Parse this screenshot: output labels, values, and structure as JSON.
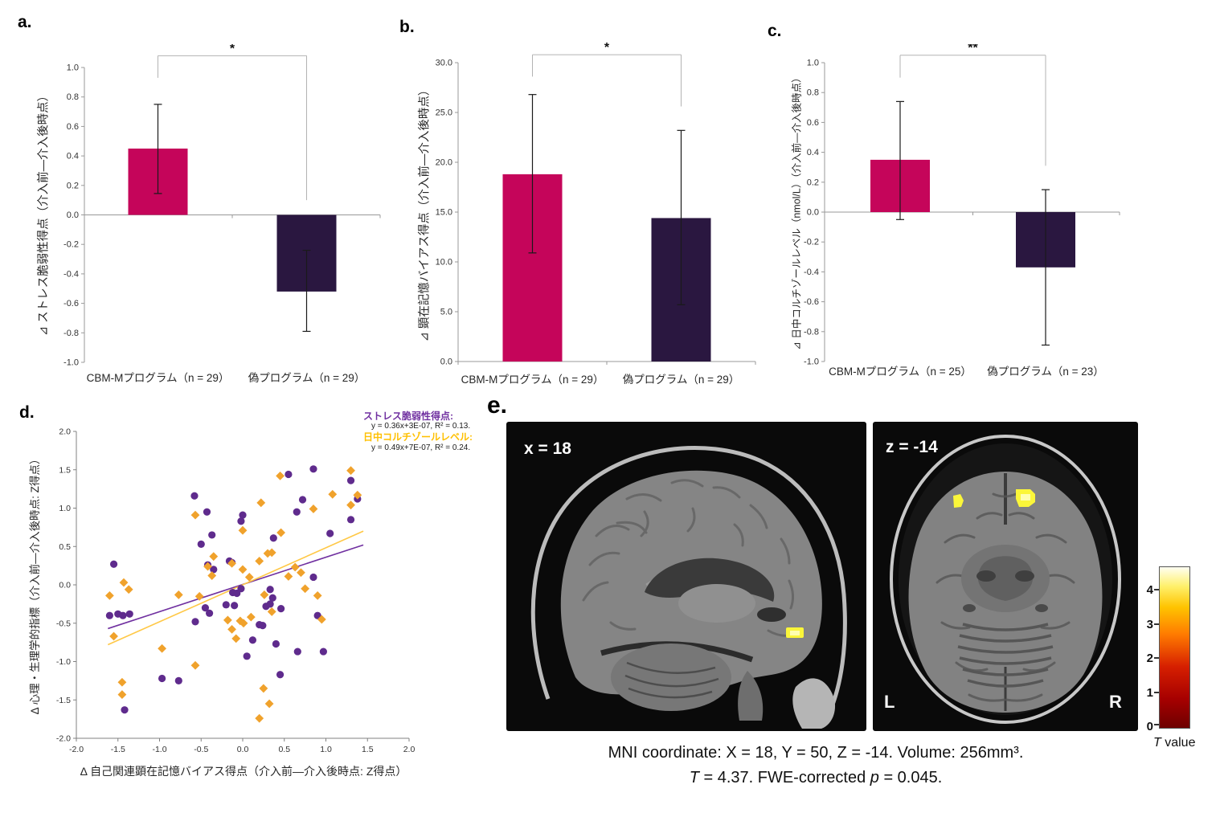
{
  "panel_letters": {
    "a": "a.",
    "b": "b.",
    "c": "c.",
    "d": "d.",
    "e": "e."
  },
  "chart_data": [
    {
      "id": "a",
      "type": "bar",
      "ylabel": "⊿ ストレス脆弱性得点（介入前―介入後時点）",
      "categories": [
        "CBM-Mプログラム（n = 29）",
        "偽プログラム（n = 29）"
      ],
      "values": [
        0.45,
        -0.52
      ],
      "error_low": [
        0.145,
        -0.79
      ],
      "error_high": [
        0.75,
        -0.24
      ],
      "ylim": [
        -1.0,
        1.0
      ],
      "ytick_step": 0.2,
      "ytick_decimals": 1,
      "baseline": 0,
      "grid": false,
      "bar_colors": [
        "#C5055A",
        "#2A1740"
      ],
      "significance": {
        "label": "*",
        "top": 1.08,
        "left_stop": 0.93,
        "right_stop": 0.1
      }
    },
    {
      "id": "b",
      "type": "bar",
      "ylabel": "⊿ 顕在記憶バイアス得点（介入前―介入後時点）",
      "categories": [
        "CBM-Mプログラム（n = 29）",
        "偽プログラム（n = 29）"
      ],
      "values": [
        18.8,
        14.4
      ],
      "error_low": [
        10.9,
        5.7
      ],
      "error_high": [
        26.8,
        23.2
      ],
      "ylim": [
        0.0,
        30.0
      ],
      "ytick_step": 5.0,
      "ytick_decimals": 1,
      "baseline": 0,
      "grid": false,
      "bar_colors": [
        "#C5055A",
        "#2A1740"
      ],
      "significance": {
        "label": "*",
        "top": 30.8,
        "left_stop": 28.6,
        "right_stop": 25.6
      }
    },
    {
      "id": "c",
      "type": "bar",
      "ylabel": "⊿ 日中コルチゾールレベル（nmol/L）（介入前―介入後時点）",
      "categories": [
        "CBM-Mプログラム（n = 25）",
        "偽プログラム（n = 23）"
      ],
      "values": [
        0.35,
        -0.37
      ],
      "error_low": [
        -0.05,
        -0.89
      ],
      "error_high": [
        0.74,
        0.15
      ],
      "ylim": [
        -1.0,
        1.0
      ],
      "ytick_step": 0.2,
      "ytick_decimals": 1,
      "baseline": 0,
      "grid": false,
      "bar_colors": [
        "#C5055A",
        "#2A1740"
      ],
      "significance": {
        "label": "**",
        "top": 1.05,
        "left_stop": 0.9,
        "right_stop": 0.31
      }
    },
    {
      "id": "d",
      "type": "scatter",
      "xlabel": "Δ 自己関連顕在記憶バイアス得点（介入前―介入後時点: Z得点）",
      "ylabel": "Δ 心理・生理学的指標（介入前―介入後時点: Z得点）",
      "xlim": [
        -2.0,
        2.0
      ],
      "ylim": [
        -2.0,
        2.0
      ],
      "tick_step": 0.5,
      "grid": false,
      "legend_position": "top-right",
      "series": [
        {
          "name": "ストレス脆弱性得点:",
          "equation": "y = 0.36x+3E-07, R² = 0.13.",
          "marker": "circle",
          "color": "#5F2B8D",
          "line_color": "#7030A0",
          "legend_color": "#7030A0",
          "trend": [
            [
              -1.62,
              -0.57
            ],
            [
              1.45,
              0.52
            ]
          ],
          "points": [
            [
              -1.55,
              0.27
            ],
            [
              -1.6,
              -0.4
            ],
            [
              -1.5,
              -0.38
            ],
            [
              -1.44,
              -0.4
            ],
            [
              -1.36,
              -0.38
            ],
            [
              -1.42,
              -1.63
            ],
            [
              -0.97,
              -1.22
            ],
            [
              -0.77,
              -1.25
            ],
            [
              -0.58,
              1.16
            ],
            [
              -0.57,
              -0.48
            ],
            [
              -0.5,
              0.53
            ],
            [
              -0.43,
              0.95
            ],
            [
              -0.45,
              -0.3
            ],
            [
              -0.4,
              -0.37
            ],
            [
              -0.37,
              0.65
            ],
            [
              -0.35,
              0.2
            ],
            [
              -0.42,
              0.26
            ],
            [
              -0.2,
              -0.26
            ],
            [
              -0.16,
              0.31
            ],
            [
              -0.13,
              0.29
            ],
            [
              -0.12,
              -0.1
            ],
            [
              -0.07,
              -0.11
            ],
            [
              -0.1,
              -0.27
            ],
            [
              0.0,
              0.91
            ],
            [
              -0.02,
              0.83
            ],
            [
              -0.02,
              -0.05
            ],
            [
              0.05,
              -0.93
            ],
            [
              0.12,
              -0.72
            ],
            [
              0.2,
              -0.52
            ],
            [
              0.24,
              -0.53
            ],
            [
              0.28,
              -0.28
            ],
            [
              0.33,
              -0.25
            ],
            [
              0.33,
              -0.06
            ],
            [
              0.36,
              -0.17
            ],
            [
              0.37,
              0.61
            ],
            [
              0.4,
              -0.77
            ],
            [
              0.46,
              -0.31
            ],
            [
              0.45,
              -1.17
            ],
            [
              0.55,
              1.44
            ],
            [
              0.65,
              0.95
            ],
            [
              0.66,
              -0.87
            ],
            [
              0.72,
              1.11
            ],
            [
              0.85,
              1.51
            ],
            [
              0.85,
              0.1
            ],
            [
              0.9,
              -0.4
            ],
            [
              0.97,
              -0.87
            ],
            [
              1.05,
              0.67
            ],
            [
              1.3,
              1.36
            ],
            [
              1.3,
              0.85
            ],
            [
              1.38,
              1.12
            ]
          ]
        },
        {
          "name": "日中コルチゾールレベル:",
          "equation": "y = 0.49x+7E-07, R² = 0.24.",
          "marker": "diamond",
          "color": "#F0A22C",
          "line_color": "#FFC846",
          "legend_color": "#FFC000",
          "trend": [
            [
              -1.62,
              -0.78
            ],
            [
              1.45,
              0.7
            ]
          ],
          "points": [
            [
              -1.6,
              -0.14
            ],
            [
              -1.55,
              -0.67
            ],
            [
              -1.43,
              0.03
            ],
            [
              -1.37,
              -0.06
            ],
            [
              -1.45,
              -1.27
            ],
            [
              -1.45,
              -1.43
            ],
            [
              -0.97,
              -0.83
            ],
            [
              -0.77,
              -0.13
            ],
            [
              -0.57,
              0.91
            ],
            [
              -0.57,
              -1.05
            ],
            [
              -0.52,
              -0.15
            ],
            [
              -0.42,
              0.24
            ],
            [
              -0.35,
              0.37
            ],
            [
              -0.37,
              0.12
            ],
            [
              -0.13,
              0.28
            ],
            [
              -0.18,
              -0.46
            ],
            [
              -0.13,
              -0.58
            ],
            [
              -0.08,
              -0.7
            ],
            [
              0.0,
              0.71
            ],
            [
              0.0,
              0.2
            ],
            [
              -0.03,
              -0.47
            ],
            [
              0.01,
              -0.5
            ],
            [
              0.08,
              0.1
            ],
            [
              0.1,
              -0.42
            ],
            [
              0.2,
              0.31
            ],
            [
              0.2,
              -1.74
            ],
            [
              0.22,
              1.07
            ],
            [
              0.26,
              -0.13
            ],
            [
              0.25,
              -1.35
            ],
            [
              0.3,
              0.41
            ],
            [
              0.35,
              0.42
            ],
            [
              0.32,
              -1.55
            ],
            [
              0.35,
              -0.35
            ],
            [
              0.45,
              1.42
            ],
            [
              0.46,
              0.68
            ],
            [
              0.55,
              0.11
            ],
            [
              0.63,
              0.23
            ],
            [
              0.7,
              0.16
            ],
            [
              0.75,
              -0.05
            ],
            [
              0.85,
              0.99
            ],
            [
              0.9,
              -0.14
            ],
            [
              0.95,
              -0.45
            ],
            [
              1.08,
              1.18
            ],
            [
              1.3,
              1.49
            ],
            [
              1.3,
              1.04
            ],
            [
              1.38,
              1.17
            ]
          ]
        }
      ]
    }
  ],
  "panel_e": {
    "sagittal_label": "x = 18",
    "axial_label": "z = -14",
    "left_label": "L",
    "right_label": "R",
    "activation_color": "#FBF63A",
    "colorbar": {
      "ticks": [
        "4",
        "3",
        "2",
        "1",
        "0"
      ],
      "max_t": 4.7,
      "label_prefix": "T",
      "label_suffix": " value"
    },
    "caption1": "MNI coordinate: X = 18, Y = 50, Z = -14. Volume: 256mm³.",
    "caption2": [
      {
        "text": "T"
      },
      {
        "text": " = 4.37. FWE-corrected "
      },
      {
        "text": "p"
      },
      {
        "text": " = 0.045."
      }
    ]
  }
}
